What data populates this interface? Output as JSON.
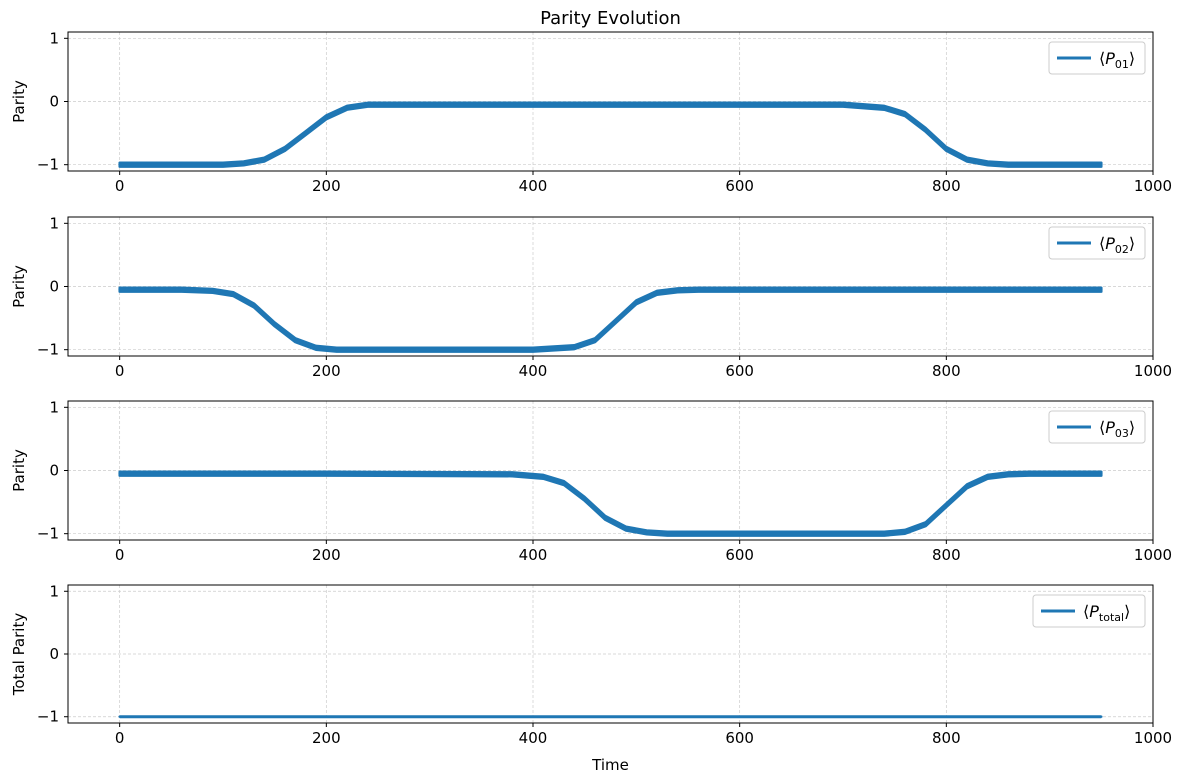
{
  "chart_data": [
    {
      "type": "line",
      "title": "Parity Evolution",
      "xlabel": "",
      "ylabel": "Parity",
      "xlim": [
        -50,
        1000
      ],
      "ylim": [
        -1.1,
        1.1
      ],
      "xticks": [
        "0",
        "200",
        "400",
        "600",
        "800",
        "1000"
      ],
      "yticks": [
        "−1",
        "0",
        "1"
      ],
      "grid": true,
      "legend_loc": "upper right",
      "series": [
        {
          "name": "⟨P01⟩",
          "legend_main": "P",
          "legend_sub": "01",
          "color": "#1f77b4",
          "x": [
            0,
            60,
            100,
            120,
            140,
            160,
            180,
            200,
            220,
            240,
            400,
            700,
            740,
            760,
            780,
            800,
            820,
            840,
            860,
            900,
            950
          ],
          "y": [
            -1.0,
            -1.0,
            -1.0,
            -0.98,
            -0.92,
            -0.75,
            -0.5,
            -0.25,
            -0.1,
            -0.05,
            -0.05,
            -0.05,
            -0.1,
            -0.2,
            -0.45,
            -0.75,
            -0.92,
            -0.98,
            -1.0,
            -1.0,
            -1.0
          ],
          "band": 0.06
        }
      ]
    },
    {
      "type": "line",
      "title": "",
      "xlabel": "",
      "ylabel": "Parity",
      "xlim": [
        -50,
        1000
      ],
      "ylim": [
        -1.1,
        1.1
      ],
      "xticks": [
        "0",
        "200",
        "400",
        "600",
        "800",
        "1000"
      ],
      "yticks": [
        "−1",
        "0",
        "1"
      ],
      "grid": true,
      "legend_loc": "upper right",
      "series": [
        {
          "name": "⟨P02⟩",
          "legend_main": "P",
          "legend_sub": "02",
          "color": "#1f77b4",
          "x": [
            0,
            60,
            90,
            110,
            130,
            150,
            170,
            190,
            210,
            400,
            440,
            460,
            480,
            500,
            520,
            540,
            560,
            600,
            950
          ],
          "y": [
            -0.05,
            -0.05,
            -0.07,
            -0.12,
            -0.3,
            -0.6,
            -0.85,
            -0.97,
            -1.0,
            -1.0,
            -0.96,
            -0.85,
            -0.55,
            -0.25,
            -0.1,
            -0.06,
            -0.05,
            -0.05,
            -0.05
          ],
          "band": 0.06
        }
      ]
    },
    {
      "type": "line",
      "title": "",
      "xlabel": "",
      "ylabel": "Parity",
      "xlim": [
        -50,
        1000
      ],
      "ylim": [
        -1.1,
        1.1
      ],
      "xticks": [
        "0",
        "200",
        "400",
        "600",
        "800",
        "1000"
      ],
      "yticks": [
        "−1",
        "0",
        "1"
      ],
      "grid": true,
      "legend_loc": "upper right",
      "series": [
        {
          "name": "⟨P03⟩",
          "legend_main": "P",
          "legend_sub": "03",
          "color": "#1f77b4",
          "x": [
            0,
            200,
            380,
            410,
            430,
            450,
            470,
            490,
            510,
            530,
            740,
            760,
            780,
            800,
            820,
            840,
            860,
            880,
            950
          ],
          "y": [
            -0.05,
            -0.05,
            -0.06,
            -0.1,
            -0.2,
            -0.45,
            -0.75,
            -0.92,
            -0.98,
            -1.0,
            -1.0,
            -0.97,
            -0.85,
            -0.55,
            -0.25,
            -0.1,
            -0.06,
            -0.05,
            -0.05
          ],
          "band": 0.06
        }
      ]
    },
    {
      "type": "line",
      "title": "",
      "xlabel": "Time",
      "ylabel": "Total Parity",
      "xlim": [
        -50,
        1000
      ],
      "ylim": [
        -1.1,
        1.1
      ],
      "xticks": [
        "0",
        "200",
        "400",
        "600",
        "800",
        "1000"
      ],
      "yticks": [
        "−1",
        "0",
        "1"
      ],
      "grid": true,
      "legend_loc": "upper right",
      "series": [
        {
          "name": "⟨Ptotal⟩",
          "legend_main": "P",
          "legend_sub": "total",
          "color": "#1f77b4",
          "x": [
            0,
            950
          ],
          "y": [
            -1.0,
            -1.0
          ],
          "band": 0
        }
      ]
    }
  ]
}
